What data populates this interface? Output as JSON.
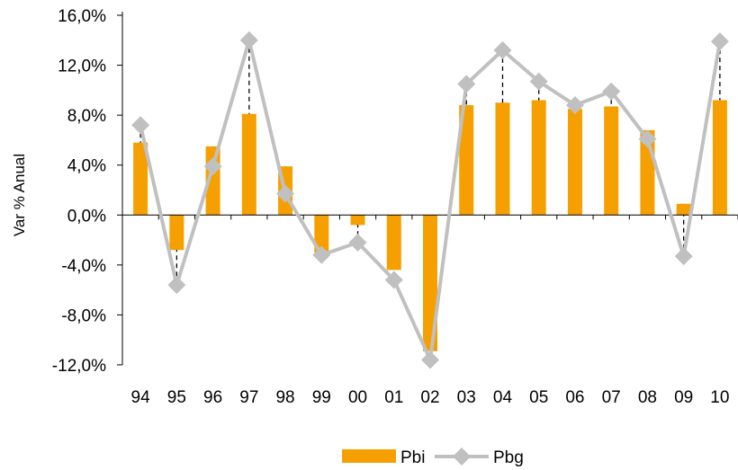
{
  "chart_data": {
    "type": "bar",
    "title": "",
    "xlabel": "",
    "ylabel": "Var % Anual",
    "categories": [
      "94",
      "95",
      "96",
      "97",
      "98",
      "99",
      "00",
      "01",
      "02",
      "03",
      "04",
      "05",
      "06",
      "07",
      "08",
      "09",
      "10"
    ],
    "ylim": [
      -12,
      16
    ],
    "y_ticks": [
      16,
      12,
      8,
      4,
      0,
      -4,
      -8,
      -12
    ],
    "y_tick_labels": [
      "16,0%",
      "12,0%",
      "8,0%",
      "4,0%",
      "0,0%",
      "-4,0%",
      "-8,0%",
      "-12,0%"
    ],
    "grid": false,
    "legend_position": "bottom",
    "series": [
      {
        "name": "Pbi",
        "type": "bar",
        "color": "#f5a000",
        "values": [
          5.8,
          -2.8,
          5.5,
          8.1,
          3.9,
          -3.0,
          -0.8,
          -4.4,
          -10.9,
          8.8,
          9.0,
          9.2,
          8.5,
          8.7,
          6.8,
          0.9,
          9.2
        ]
      },
      {
        "name": "Pbg",
        "type": "line",
        "color": "#c0c0c0",
        "marker": "diamond",
        "values": [
          7.2,
          -5.6,
          3.9,
          14.0,
          1.7,
          -3.2,
          -2.2,
          -5.2,
          -11.6,
          10.5,
          13.2,
          10.7,
          8.8,
          9.9,
          6.1,
          -3.3,
          13.9
        ]
      }
    ],
    "annotations": "dashed vertical lines connect each Pbi bar top to the corresponding Pbg point"
  }
}
